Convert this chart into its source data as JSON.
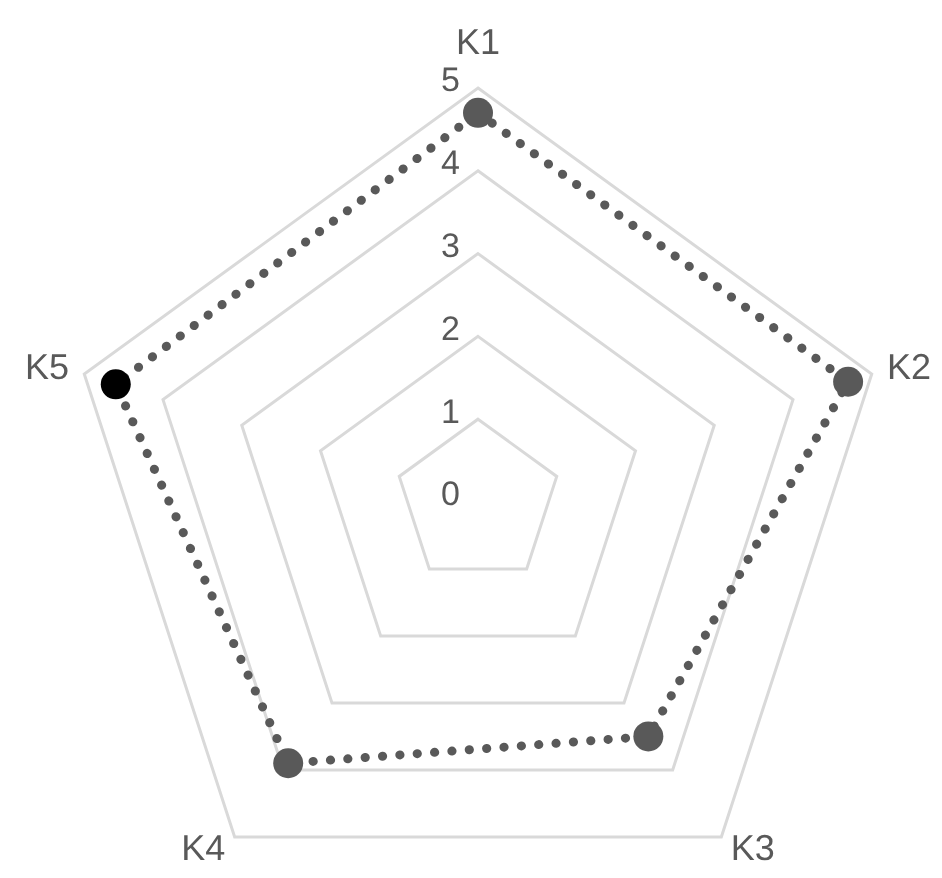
{
  "chart_data": {
    "type": "radar",
    "categories": [
      "K1",
      "K2",
      "K3",
      "K4",
      "K5"
    ],
    "series": [
      {
        "color": "#595959",
        "colors": [
          "#595959",
          "#595959",
          "#595959",
          "#595959",
          "#000000"
        ],
        "values": [
          4.7,
          4.7,
          3.5,
          3.9,
          4.6
        ]
      }
    ],
    "ylim": [
      0,
      5
    ],
    "yticks": [
      0,
      1,
      2,
      3,
      4,
      5
    ],
    "grid": true,
    "marker": "circle",
    "line_style": "dotted"
  }
}
